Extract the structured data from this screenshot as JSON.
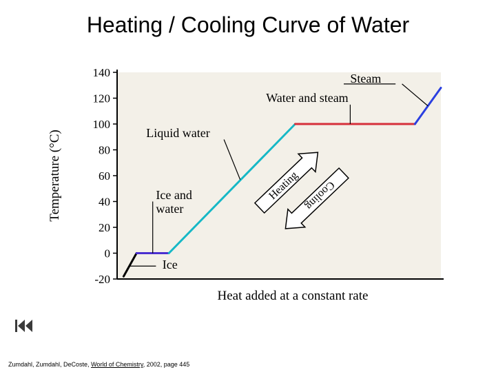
{
  "title": "Heating / Cooling Curve of Water",
  "citation": {
    "authors": "Zumdahl, Zumdahl, DeCoste, ",
    "book": "World of Chemistry",
    "rest": ", 2002, page 445"
  },
  "chart": {
    "type": "line",
    "background_color": "#ffffff",
    "plot_background": "#f3f0e8",
    "axis_color": "#000000",
    "tick_fontsize": 17,
    "label_fontsize": 19,
    "annotation_fontsize": 18,
    "y_axis_label": "Temperature (°C)",
    "x_axis_label": "Heat added at a constant rate",
    "ylim": [
      -20,
      140
    ],
    "yticks": [
      -20,
      0,
      20,
      40,
      60,
      80,
      100,
      120,
      140
    ],
    "xlim": [
      0,
      100
    ],
    "segments": [
      {
        "name": "ice",
        "from": [
          2,
          -18
        ],
        "to": [
          6,
          0
        ],
        "color": "#000000",
        "width": 3
      },
      {
        "name": "ice-and-water",
        "from": [
          6,
          0
        ],
        "to": [
          16,
          0
        ],
        "color": "#4a2fd0",
        "width": 3
      },
      {
        "name": "liquid-water",
        "from": [
          16,
          0
        ],
        "to": [
          55,
          100
        ],
        "color": "#16b8c6",
        "width": 3
      },
      {
        "name": "water-and-steam",
        "from": [
          55,
          100
        ],
        "to": [
          92,
          100
        ],
        "color": "#d62f3a",
        "width": 3
      },
      {
        "name": "steam",
        "from": [
          92,
          100
        ],
        "to": [
          100,
          128
        ],
        "color": "#2a3fe0",
        "width": 3
      }
    ],
    "annotations": {
      "steam": "Steam",
      "water_and_steam": "Water and steam",
      "liquid_water": "Liquid water",
      "ice_and_water": "Ice and\nwater",
      "ice": "Ice"
    },
    "arrow_labels": {
      "heating": "Heating",
      "cooling": "Cooling"
    },
    "arrow_style": {
      "fill": "#ffffff",
      "stroke": "#000000",
      "stroke_width": 1.5,
      "label_fontsize": 16
    }
  },
  "rewind_icon_color": "#3a3a3a"
}
